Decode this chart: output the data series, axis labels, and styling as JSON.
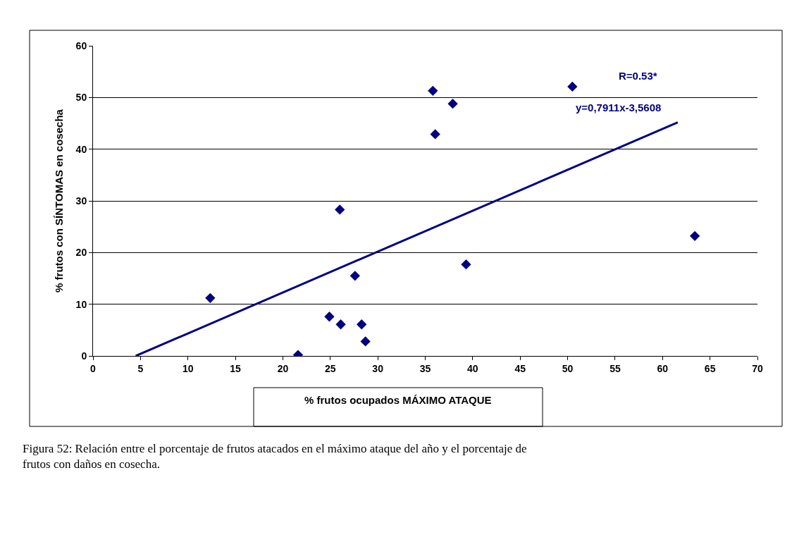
{
  "chart_data": {
    "type": "scatter",
    "xlabel": "% frutos ocupados MÁXIMO ATAQUE",
    "ylabel": "% frutos con SÍNTOMAS en cosecha",
    "series": [
      {
        "color": "#000080",
        "marker": "diamond",
        "x": [
          12.35,
          21.6,
          24.9,
          26.1,
          26.0,
          27.6,
          28.3,
          28.7,
          35.8,
          36.05,
          37.9,
          39.3,
          50.5,
          63.4
        ],
        "values": [
          11.2,
          0.2,
          7.6,
          6.1,
          28.3,
          15.5,
          6.1,
          2.8,
          51.3,
          42.9,
          48.8,
          17.7,
          52.1,
          23.2
        ]
      },
      {
        "type": "line",
        "color": "#000080",
        "x": [
          4.5,
          61.6
        ],
        "values": [
          0,
          45.2
        ]
      }
    ],
    "xlim": [
      0,
      70
    ],
    "xticks": [
      0,
      5,
      10,
      15,
      20,
      25,
      30,
      35,
      40,
      45,
      50,
      55,
      60,
      65,
      70
    ],
    "ylim": [
      0,
      60
    ],
    "yticks": [
      0,
      10,
      20,
      30,
      40,
      50,
      60
    ],
    "grid": "y",
    "legend": false,
    "annotations": [
      "R=0.53*",
      "y=0,7911x-3,5608",
      "Figura 52: Relación entre el porcentaje de frutos atacados en el máximo ataque del año y el porcentaje de frutos con daños en cosecha."
    ]
  }
}
